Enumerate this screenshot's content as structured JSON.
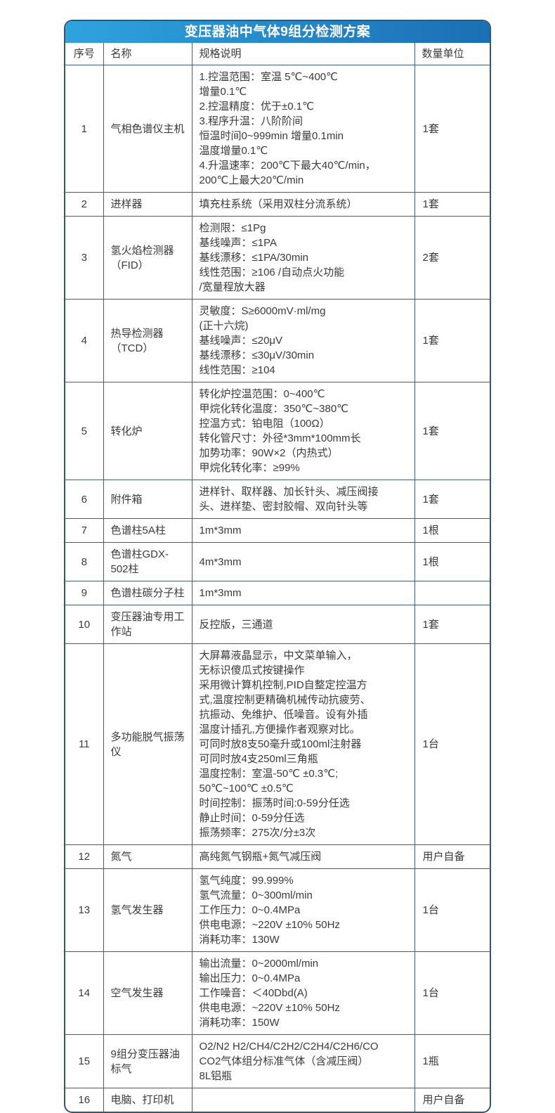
{
  "title": "变压器油中气体9组分检测方案",
  "colors": {
    "header_gradient_start": "#2fa3df",
    "header_gradient_end": "#1c6fb4",
    "outer_border": "#35566f",
    "grid_line": "#3e5f7f",
    "text": "#3a3a3a",
    "title_text": "#ffffff"
  },
  "table": {
    "headers": [
      "序号",
      "名称",
      "规格说明",
      "数量单位"
    ],
    "rows": [
      {
        "no": "1",
        "name": "气相色谱仪主机",
        "spec": "1.控温范围：室温 5℃~400℃\n增量0.1℃\n2.控温精度：优于±0.1℃\n3.程序升温：八阶阶间\n恒温时间0~999min 增量0.1min\n温度增量0.1℃\n4.升温速率：200℃下最大40℃/min，\n200℃上最大20℃/min",
        "qty": "1套"
      },
      {
        "no": "2",
        "name": "进样器",
        "spec": "填充柱系统（采用双柱分流系统）",
        "qty": "1套"
      },
      {
        "no": "3",
        "name": "氢火焰检测器（FID）",
        "spec": "检测限：≤1Pg\n基线噪声：≤1PA\n基线漂移：≤1PA/30min\n线性范围：≥106 /自动点火功能\n/宽量程放大器",
        "qty": "2套"
      },
      {
        "no": "4",
        "name": "热导检测器（TCD）",
        "spec": "灵敏度：S≥6000mV·ml/mg\n(正十六烷)\n基线噪声：≤20μV\n基线漂移：≤30μV/30min\n线性范围：≥104",
        "qty": "1套"
      },
      {
        "no": "5",
        "name": "转化炉",
        "spec": "转化炉控温范围：0~400℃\n甲烷化转化温度：350℃~380℃\n控温方式：铂电阻（100Ω）\n转化管尺寸：外径*3mm*100mm长\n加势功率：90W×2（内热式）\n甲烷化转化率：≥99%",
        "qty": "1套"
      },
      {
        "no": "6",
        "name": "附件箱",
        "spec": "进样针、取样器、加长针头、减压阀接\n头、进样垫、密封胶帽、双向针头等",
        "qty": "1套"
      },
      {
        "no": "7",
        "name": "色谱柱5A柱",
        "spec": "1m*3mm",
        "qty": "1根"
      },
      {
        "no": "8",
        "name": "色谱柱GDX-502柱",
        "spec": "4m*3mm",
        "qty": "1根"
      },
      {
        "no": "9",
        "name": "色谱柱碳分子柱",
        "spec": "1m*3mm",
        "qty": ""
      },
      {
        "no": "10",
        "name": "变压器油专用工作站",
        "spec": "反控版，三通道",
        "qty": "1套"
      },
      {
        "no": "11",
        "name": "多功能脱气振荡仪",
        "spec": "大屏幕液晶显示，中文菜单输入，\n无标识傻瓜式按键操作\n采用微计算机控制,PID自整定控温方\n式,温度控制更精确机械传动抗疲劳、\n抗振动、免维护、低噪音。设有外插\n温度计插孔,方便操作者观察对比。\n可同时放8支50毫升或100ml注射器\n可同时放4支250ml三角瓶\n温度控制：室温-50℃ ±0.3℃;\n50℃~100℃ ±0.5℃\n时间控制：振荡时间:0-59分任选\n静止时间：0-59分任选\n振荡频率：275次/分±3次",
        "qty": "1台"
      },
      {
        "no": "12",
        "name": "氮气",
        "spec": "高纯氮气钢瓶+氮气减压阀",
        "qty": "用户自备"
      },
      {
        "no": "13",
        "name": "氢气发生器",
        "spec": "氢气纯度：99.999%\n氢气流量：0~300ml/min\n工作压力：0~0.4MPa\n供电电源：~220V ±10% 50Hz\n消耗功率：130W",
        "qty": "1台"
      },
      {
        "no": "14",
        "name": "空气发生器",
        "spec": "输出流量：0~2000ml/min\n输出压力：0~0.4MPa\n工作噪音：＜40Dbd(A)\n供电电源：~220V ±10% 50Hz\n消耗功率：150W",
        "qty": "1台"
      },
      {
        "no": "15",
        "name": "9组分变压器油标气",
        "spec": "O2/N2 H2/CH4/C2H2/C2H4/C2H6/CO\nCO2气体组分标准气体（含减压阀）\n8L铝瓶",
        "qty": "1瓶"
      },
      {
        "no": "16",
        "name": "电脑、打印机",
        "spec": "",
        "qty": "用户自备"
      }
    ]
  }
}
